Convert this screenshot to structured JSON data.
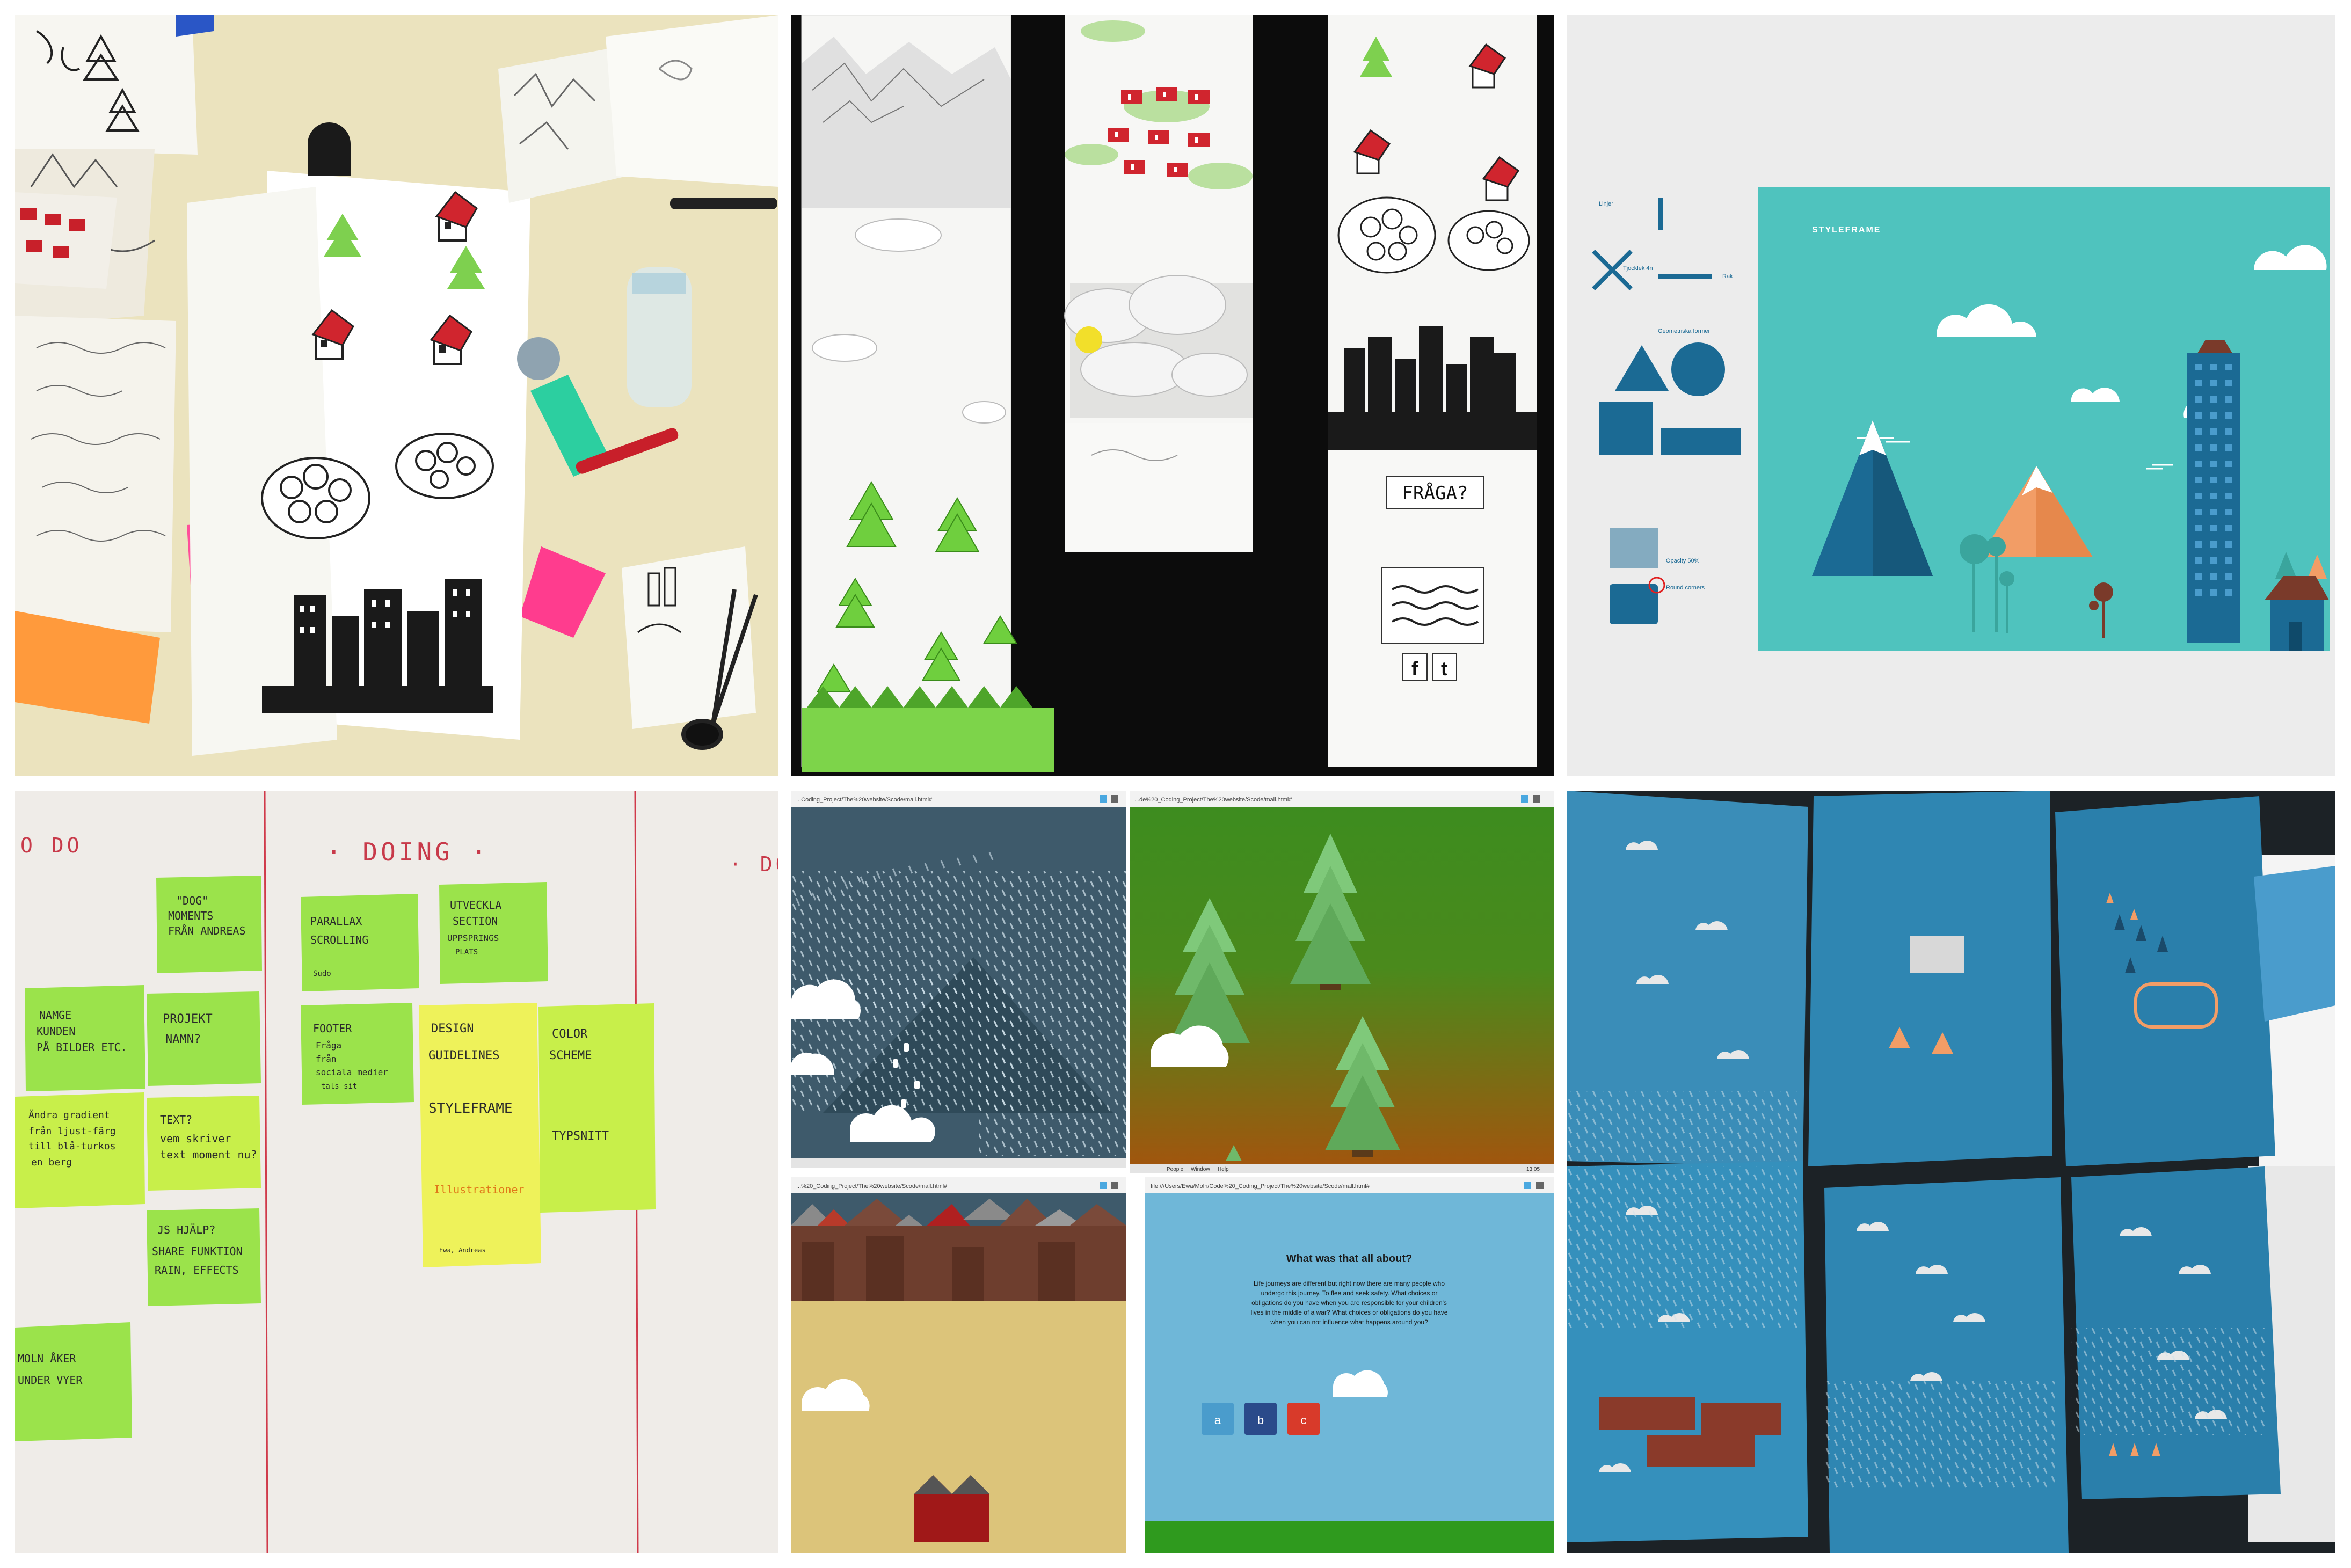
{
  "panels": {
    "sketches": {
      "label": ""
    },
    "paper_wall": {
      "label": "",
      "fraga": "FRÅGA?",
      "fb": "f",
      "tumblr": "t"
    },
    "styleframe": {
      "title": "STYLEFRAME",
      "linjer": "Linjer",
      "tjocklek": "Tjocklek 4n",
      "rak": "Rak",
      "geometriska": "Geometriska former",
      "opacity": "Opacity 50%",
      "round": "Round corners",
      "colors": {
        "teal": "#4fc3be",
        "navy": "#1b6a94",
        "orange": "#f29d66",
        "white": "#ffffff"
      }
    },
    "kanban": {
      "col_todo": "O DO",
      "col_doing": "· DOING ·",
      "col_done": "· DO",
      "notes": [
        {
          "id": "n1",
          "lines": [
            "\"DOG\"",
            "MOMENTS",
            "FRÅN ANDREAS"
          ]
        },
        {
          "id": "n2",
          "lines": [
            "NAMGE",
            "KUNDEN",
            "PÅ BILDER ETC."
          ]
        },
        {
          "id": "n3",
          "lines": [
            "PROJEKT",
            "NAMN?"
          ]
        },
        {
          "id": "n4",
          "lines": [
            "Ändra gradient",
            "från ljust-färg",
            "till blå-turkos",
            "en berg"
          ]
        },
        {
          "id": "n5",
          "lines": [
            "TEXT?",
            "vem skriver",
            "text moment nu?"
          ]
        },
        {
          "id": "n6",
          "lines": [
            "JS HJÄLP?",
            "SHARE FUNKTION",
            "RAIN, EFFECTS"
          ]
        },
        {
          "id": "n7",
          "lines": [
            "MOLN ÅKER",
            "UNDER VYER"
          ]
        },
        {
          "id": "n8",
          "lines": [
            "PARALLAX",
            "SCROLLING",
            "",
            "Sudo"
          ]
        },
        {
          "id": "n9",
          "lines": [
            "UTVECKLA",
            "SECTION",
            "UPPSPRINGS",
            "PLATS"
          ]
        },
        {
          "id": "n10",
          "lines": [
            "FOOTER",
            "Fråga",
            "från",
            "sociala medier",
            "tals sit"
          ]
        },
        {
          "id": "n11",
          "lines": [
            "DESIGN",
            "GUIDELINES",
            "",
            "STYLEFRAME",
            "",
            "",
            "Illustrationer",
            "",
            "",
            "Ewa, Andreas"
          ]
        },
        {
          "id": "n12",
          "lines": [
            "COLOR",
            "SCHEME",
            "",
            "",
            "TYPSNITT"
          ]
        }
      ]
    },
    "browser": {
      "tl_url": "...Coding_Project/The%20website/Scode/mall.html#",
      "tr_url": "...de%20_Coding_Project/The%20website/Scode/mall.html#",
      "bl_url": "...%20_Coding_Project/The%20website/Scode/mall.html#",
      "br_url": "file:///Users/Ewa/Moln/Code%20_Coding_Project/The%20website/Scode/mall.html#",
      "menu_people": "People",
      "menu_window": "Window",
      "menu_help": "Help",
      "clock": "13:05",
      "question_title": "What was that all about?",
      "question_body_1": "Life journeys are different but right now there are many people who",
      "question_body_2": "undergo this journey. To flee and seek safety. What choices or",
      "question_body_3": "obligations do you have when you are responsible for your children's",
      "question_body_4": "lives in the middle of a war? What choices or obligations do you have",
      "question_body_5": "when you can not influence what happens around you?",
      "btn_a": "a",
      "btn_b": "b",
      "btn_c": "c",
      "colors": {
        "slate": "#3e5a6b",
        "green": "#3d8c1f",
        "brown": "#a0560e",
        "sand": "#dcc47a",
        "sky": "#6fb7d8"
      }
    },
    "prints": {
      "label": ""
    }
  }
}
